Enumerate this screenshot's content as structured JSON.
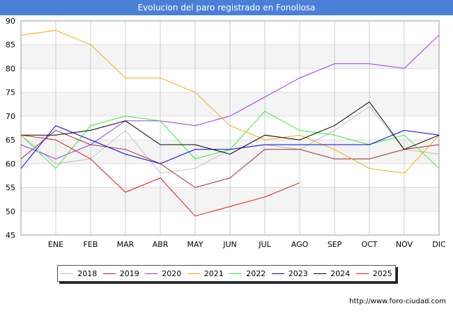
{
  "title": "Evolucion del paro registrado en Fonollosa",
  "source": "http://www.foro-ciudad.com",
  "chart_data": {
    "type": "line",
    "categories": [
      "",
      "ENE",
      "FEB",
      "MAR",
      "ABR",
      "MAY",
      "JUN",
      "JUL",
      "AGO",
      "SEP",
      "OCT",
      "NOV",
      "DIC"
    ],
    "y_ticks": [
      "90",
      "85",
      "80",
      "75",
      "70",
      "65",
      "60",
      "55",
      "50",
      "45"
    ],
    "ylim": [
      45,
      90
    ],
    "grid": true,
    "legend_position": "bottom",
    "series": [
      {
        "name": "2018",
        "color": "#c0c0c0",
        "values": [
          66,
          60,
          61,
          67,
          58,
          59,
          63,
          64,
          63,
          67,
          72,
          63,
          62
        ]
      },
      {
        "name": "2019",
        "color": "#a52a2a",
        "values": [
          61,
          67,
          64,
          63,
          60,
          55,
          57,
          63,
          63,
          61,
          61,
          63,
          64
        ]
      },
      {
        "name": "2020",
        "color": "#9933ff",
        "values": [
          64,
          61,
          64,
          69,
          69,
          68,
          70,
          74,
          78,
          81,
          81,
          80,
          87
        ]
      },
      {
        "name": "2021",
        "color": "#ffa500",
        "values": [
          87,
          88,
          85,
          78,
          78,
          75,
          68,
          65,
          66,
          63,
          59,
          58,
          66
        ]
      },
      {
        "name": "2022",
        "color": "#33ee33",
        "values": [
          66,
          59,
          68,
          70,
          69,
          61,
          63,
          71,
          67,
          66,
          64,
          66,
          59
        ]
      },
      {
        "name": "2023",
        "color": "#0000ee",
        "values": [
          59,
          68,
          65,
          62,
          60,
          63,
          63,
          64,
          64,
          64,
          64,
          67,
          66
        ]
      },
      {
        "name": "2024",
        "color": "#000000",
        "values": [
          66,
          66,
          67,
          69,
          64,
          64,
          62,
          66,
          65,
          68,
          73,
          63,
          66
        ]
      },
      {
        "name": "2025",
        "color": "#ee1111",
        "values": [
          66,
          65,
          61,
          54,
          57,
          49,
          51,
          53,
          56,
          null,
          null,
          null,
          null
        ]
      }
    ]
  }
}
